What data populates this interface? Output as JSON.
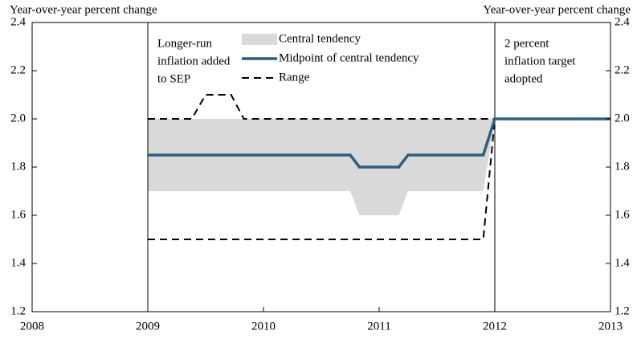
{
  "chart_data": {
    "type": "line",
    "ylabel": "Year-over-year percent change",
    "y2label": "Year-over-year percent change",
    "xlim": [
      2008,
      2013
    ],
    "xticks": [
      2008,
      2009,
      2010,
      2011,
      2012,
      2013
    ],
    "ylim": [
      1.2,
      2.4
    ],
    "yticks": [
      1.2,
      1.4,
      1.6,
      1.8,
      {
        "value": 2,
        "label": "2.0"
      },
      2.2,
      2.4
    ],
    "y2lim": [
      1.2,
      2.4
    ],
    "y2ticks": [
      1.2,
      1.4,
      1.6,
      1.8,
      {
        "value": 2,
        "label": "2.0"
      },
      2.2,
      2.4
    ],
    "band": {
      "name": "Central tendency",
      "color": "#d9d9d9",
      "x": [
        2009,
        2010.75,
        2010.83,
        2011.17,
        2011.25,
        2011.9,
        2012
      ],
      "lower": [
        1.7,
        1.7,
        1.6,
        1.6,
        1.7,
        1.7,
        2.0
      ],
      "upper": [
        2.0,
        2.0,
        2.0,
        2.0,
        2.0,
        2.0,
        2.0
      ]
    },
    "series": [
      {
        "name": "Midpoint of central tendency",
        "color": "#2e5f7f",
        "style": "solid",
        "x": [
          2009,
          2010.75,
          2010.83,
          2011.17,
          2011.25,
          2011.9,
          2012,
          2013
        ],
        "values": [
          1.85,
          1.85,
          1.8,
          1.8,
          1.85,
          1.85,
          2.0,
          2.0
        ]
      },
      {
        "name": "Range",
        "color": "#000000",
        "style": "dashed",
        "x": [
          2009,
          2009.38,
          2009.5,
          2009.72,
          2009.83,
          2012
        ],
        "values": [
          2.0,
          2.0,
          2.1,
          2.1,
          2.0,
          2.0
        ]
      },
      {
        "name": null,
        "color": "#000000",
        "style": "dashed",
        "x": [
          2009,
          2011.9,
          2012
        ],
        "values": [
          1.5,
          1.5,
          2.0
        ]
      }
    ],
    "annotations": [
      {
        "x": 2009,
        "lines": [
          "Longer-run",
          "inflation added",
          "to SEP"
        ]
      },
      {
        "x": 2012,
        "lines": [
          "2 percent",
          "inflation target",
          "adopted"
        ]
      }
    ]
  }
}
